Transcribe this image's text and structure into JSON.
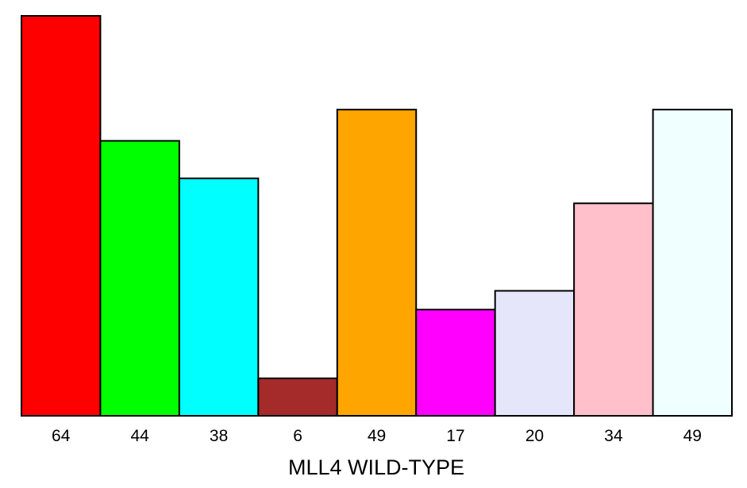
{
  "chart_data": {
    "type": "bar",
    "title": "",
    "xlabel": "MLL4 WILD-TYPE",
    "ylabel": "",
    "categories": [
      "64",
      "44",
      "38",
      "6",
      "49",
      "17",
      "20",
      "34",
      "49"
    ],
    "values": [
      64,
      44,
      38,
      6,
      49,
      17,
      20,
      34,
      49
    ],
    "colors": [
      "#ff0000",
      "#00ff00",
      "#00ffff",
      "#a52a2a",
      "#ffa500",
      "#ff00ff",
      "#e6e6fa",
      "#ffc0cb",
      "#f0ffff"
    ],
    "ylim": [
      0,
      64
    ],
    "grid": false,
    "legend": "none"
  }
}
